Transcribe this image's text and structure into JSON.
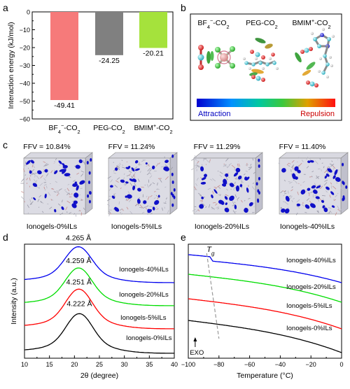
{
  "chart_data": [
    {
      "panel": "a",
      "type": "bar",
      "ylabel": "Interaction energy (kJ/mol)",
      "ylim": [
        0,
        -60
      ],
      "yticks": [
        "0",
        "−10",
        "−20",
        "−30",
        "−40",
        "−50",
        "−60"
      ],
      "categories": [
        "BF4⁻-CO2",
        "PEG-CO2",
        "BMIM⁺-CO2"
      ],
      "cat_main": [
        "BF",
        "PEG-CO",
        "BMIM"
      ],
      "cat_sub": [
        "4",
        "2",
        ""
      ],
      "cat_sup": [
        "−",
        "",
        "+"
      ],
      "cat_tail": [
        "-CO",
        "",
        "-CO"
      ],
      "cat_tail_sub": [
        "2",
        "",
        "2"
      ],
      "values": [
        -49.41,
        -24.25,
        -20.21
      ],
      "value_labels": [
        "-49.41",
        "-24.25",
        "-20.21"
      ],
      "colors": [
        "#f67a7a",
        "#808080",
        "#a5e23c"
      ]
    },
    {
      "panel": "b",
      "type": "other",
      "headers": [
        "BF",
        "PEG-CO",
        "BMIM"
      ],
      "header_sub": [
        "4",
        "2",
        ""
      ],
      "header_sup": [
        "−",
        "",
        "+"
      ],
      "header_tail": [
        "-CO",
        "",
        "-CO"
      ],
      "header_tail_sub": [
        "2",
        "",
        "2"
      ],
      "colorbar_left": "Attraction",
      "colorbar_right": "Repulsion"
    },
    {
      "panel": "c",
      "type": "other",
      "ffv": [
        "FFV = 10.84%",
        "FFV = 11.24%",
        "FFV = 11.29%",
        "FFV = 11.40%"
      ],
      "labels": [
        "Ionogels-0%ILs",
        "Ionogels-5%ILs",
        "Ionogels-20%ILs",
        "Ionogels-40%ILs"
      ],
      "void_counts_relative": [
        1,
        1.1,
        1.15,
        1.2
      ]
    },
    {
      "panel": "d",
      "type": "line",
      "xlabel": "2θ (degree)",
      "ylabel": "Intensity (a.u.)",
      "xlim": [
        10,
        40
      ],
      "xticks": [
        10,
        15,
        20,
        25,
        30,
        35,
        40
      ],
      "series": [
        {
          "name": "Ionogels-0%ILs",
          "color": "#000000",
          "peak_x": 21.0,
          "peak_label": "4.222 Å"
        },
        {
          "name": "Ionogels-5%ILs",
          "color": "#ff0000",
          "peak_x": 20.9,
          "peak_label": "4.251 Å"
        },
        {
          "name": "Ionogels-20%ILs",
          "color": "#00dd00",
          "peak_x": 20.85,
          "peak_label": "4.259 Å"
        },
        {
          "name": "Ionogels-40%ILs",
          "color": "#0000ee",
          "peak_x": 20.8,
          "peak_label": "4.265 Å"
        }
      ]
    },
    {
      "panel": "e",
      "type": "line",
      "xlabel": "Temperature (°C)",
      "xlim": [
        -100,
        0
      ],
      "xticks": [
        -100,
        -80,
        -60,
        -40,
        -20,
        0
      ],
      "xtick_labels": [
        "−100",
        "−80",
        "−60",
        "−40",
        "−20",
        "0"
      ],
      "tg_label": "T",
      "tg_sub": "g",
      "exo_label": "EXO",
      "series": [
        {
          "name": "Ionogels-40%ILs",
          "color": "#0000ee"
        },
        {
          "name": "Ionogels-20%ILs",
          "color": "#00dd00"
        },
        {
          "name": "Ionogels-5%ILs",
          "color": "#ff0000"
        },
        {
          "name": "Ionogels-0%ILs",
          "color": "#000000"
        }
      ]
    }
  ],
  "panel_letters": [
    "a",
    "b",
    "c",
    "d",
    "e"
  ]
}
